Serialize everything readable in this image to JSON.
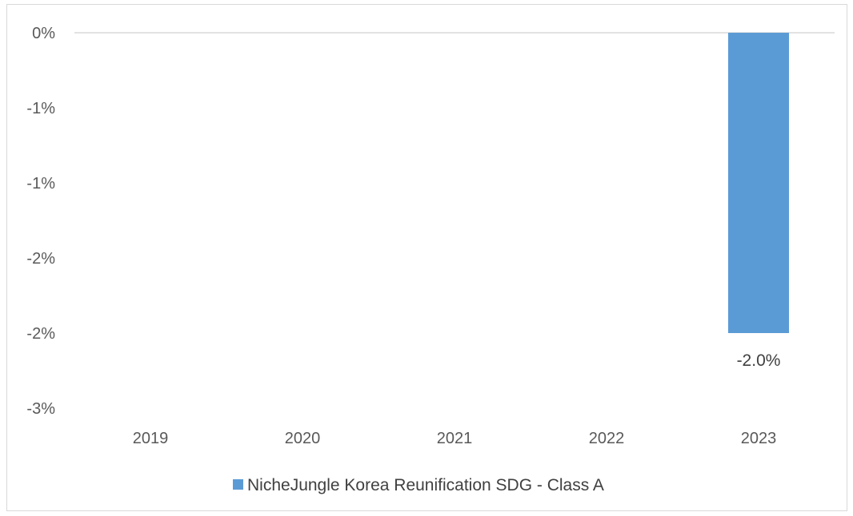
{
  "chart_data": {
    "type": "bar",
    "categories": [
      "2019",
      "2020",
      "2021",
      "2022",
      "2023"
    ],
    "series": [
      {
        "name": "NicheJungle Korea Reunification SDG - Class A",
        "values": [
          null,
          null,
          null,
          null,
          -2.0
        ],
        "data_labels": [
          "",
          "",
          "",
          "",
          "-2.0%"
        ],
        "color": "#5b9bd5"
      }
    ],
    "ylim": [
      -2.5,
      0
    ],
    "yticks": [
      {
        "value": 0,
        "label": "0%"
      },
      {
        "value": -0.5,
        "label": "-1%"
      },
      {
        "value": -1.0,
        "label": "-1%"
      },
      {
        "value": -1.5,
        "label": "-2%"
      },
      {
        "value": -2.0,
        "label": "-2%"
      },
      {
        "value": -2.5,
        "label": "-3%"
      }
    ],
    "title": "",
    "xlabel": "",
    "ylabel": "",
    "grid": false,
    "legend_position": "bottom",
    "colors": {
      "axis_line": "#d9d9d9",
      "bar": "#5b9bd5"
    }
  }
}
